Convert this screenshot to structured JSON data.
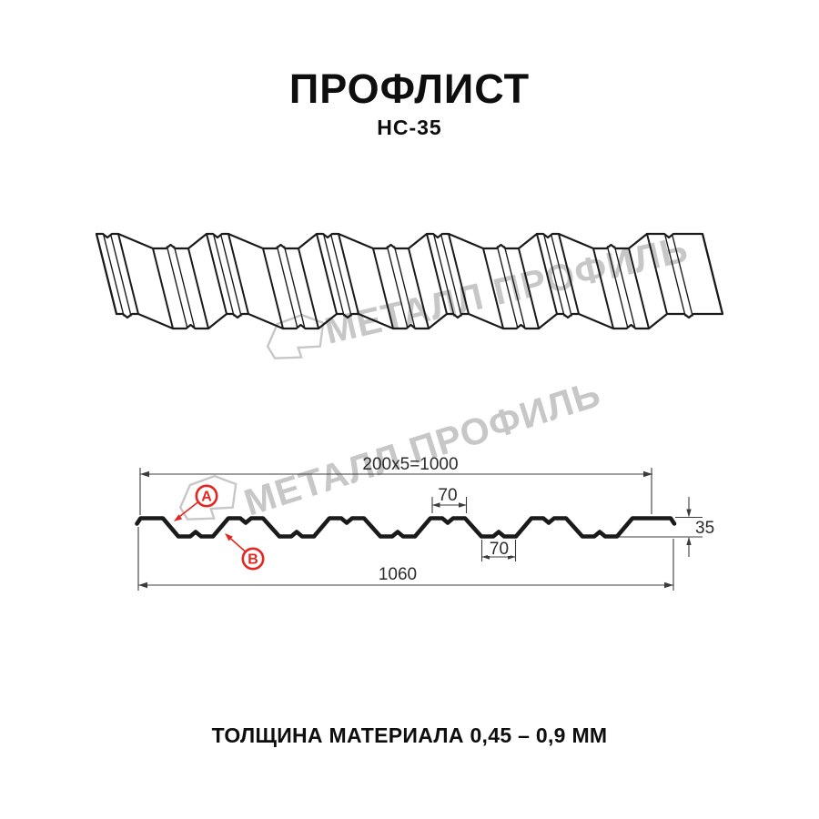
{
  "header": {
    "title": "ПРОФЛИСТ",
    "subtitle": "НС-35"
  },
  "watermark": {
    "text": "МЕТАЛЛ ПРОФИЛЬ"
  },
  "section": {
    "dim_cover_width": "200x5=1000",
    "dim_total_width": "1060",
    "dim_top_flange": "70",
    "dim_bottom_flange": "70",
    "dim_height": "35",
    "marker_a": "А",
    "marker_b": "В"
  },
  "footer": {
    "caption": "ТОЛЩИНА МАТЕРИАЛА 0,45 – 0,9 ММ"
  },
  "colors": {
    "ink": "#1a1a1a",
    "dim_line": "#3c3c3c",
    "dim_text": "#2b2b2b",
    "red": "#e42621",
    "watermark": "#c7c7c7"
  }
}
